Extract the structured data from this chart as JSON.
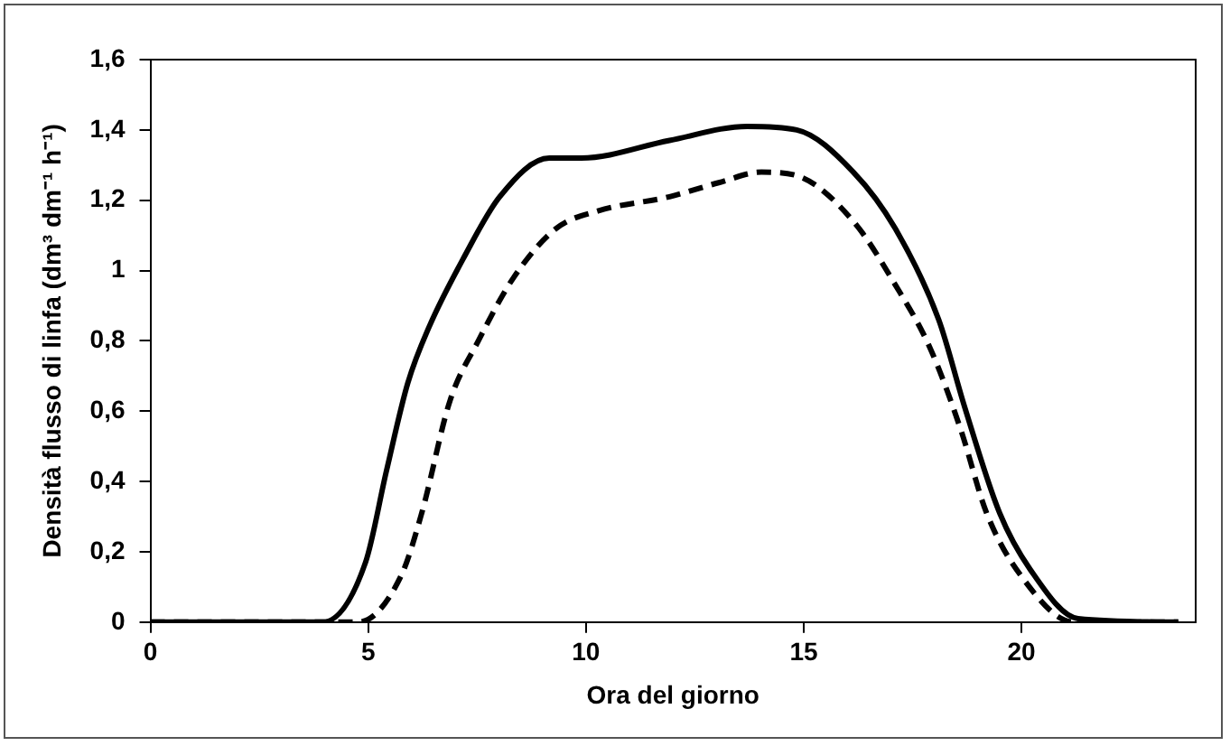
{
  "chart_data": {
    "type": "line",
    "xlabel": "Ora del giorno",
    "ylabel": "Densità flusso di linfa (dm³ dm⁻¹ h⁻¹)",
    "xlim": [
      0,
      24
    ],
    "xticks": [
      0,
      5,
      10,
      15,
      20
    ],
    "ylim": [
      0,
      1.6
    ],
    "yticks": [
      {
        "value": 0,
        "label": "0"
      },
      {
        "value": 0.2,
        "label": "0,2"
      },
      {
        "value": 0.4,
        "label": "0,4"
      },
      {
        "value": 0.6,
        "label": "0,6"
      },
      {
        "value": 0.8,
        "label": "0,8"
      },
      {
        "value": 1,
        "label": "1"
      },
      {
        "value": 1.2,
        "label": "1,2"
      },
      {
        "value": 1.4,
        "label": "1,4"
      },
      {
        "value": 1.6,
        "label": "1,6"
      }
    ],
    "grid": false,
    "legend": false,
    "marker": "none",
    "series": [
      {
        "color": "#000000",
        "line_style": "solid",
        "x": [
          0,
          3.47,
          3.96,
          4.94,
          5.42,
          5.91,
          6.4,
          7.21,
          8.02,
          9.16,
          9.89,
          11.92,
          13.7,
          14.84,
          16.14,
          17.1,
          18.1,
          18.7,
          19.5,
          20.2,
          21.3,
          23.6
        ],
        "values": [
          0,
          0,
          0,
          0.17,
          0.43,
          0.68,
          0.84,
          1.04,
          1.21,
          1.32,
          1.32,
          1.37,
          1.41,
          1.4,
          1.28,
          1.12,
          0.86,
          0.61,
          0.31,
          0.15,
          0.01,
          0
        ]
      },
      {
        "color": "#000000",
        "line_style": "dashed",
        "x": [
          0,
          3.47,
          4.77,
          5.75,
          6.23,
          6.88,
          7.53,
          8.34,
          9.32,
          10.29,
          11.92,
          13.05,
          14.03,
          14.84,
          16.14,
          17.1,
          17.9,
          18.6,
          19.2,
          20,
          21.2,
          23.6
        ],
        "values": [
          0,
          0,
          0,
          0.13,
          0.31,
          0.63,
          0.8,
          0.98,
          1.12,
          1.17,
          1.21,
          1.25,
          1.28,
          1.27,
          1.14,
          0.96,
          0.78,
          0.55,
          0.31,
          0.13,
          0,
          0
        ]
      }
    ]
  }
}
